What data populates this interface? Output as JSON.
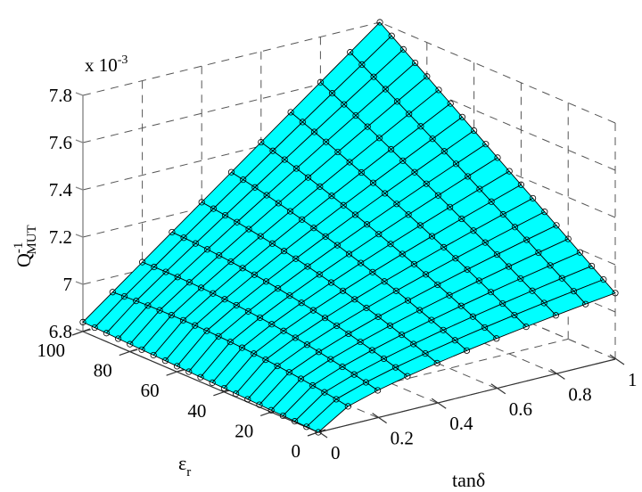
{
  "chart_data": {
    "type": "surface3d",
    "title": "",
    "xlabel": "tanδ",
    "ylabel": "ε",
    "ylabel_subscript": "r",
    "zlabel": "Q",
    "zlabel_superscript": "-1",
    "zlabel_subscript": "MUT",
    "z_multiplier": "x 10",
    "z_multiplier_exp": "-3",
    "x_ticks": [
      "0",
      "0.2",
      "0.4",
      "0.6",
      "0.8",
      "1"
    ],
    "y_ticks": [
      "0",
      "20",
      "40",
      "60",
      "80",
      "100"
    ],
    "z_ticks": [
      "6.8",
      "7",
      "7.2",
      "7.4",
      "7.6",
      "7.8"
    ],
    "xlim": [
      0,
      1
    ],
    "ylim": [
      0,
      100
    ],
    "zlim": [
      6.8,
      7.8
    ],
    "surface_color": "#00FFFF",
    "mesh": {
      "tan_delta_values": [
        0,
        0.1,
        0.2,
        0.3,
        0.4,
        0.5,
        0.6,
        0.7,
        0.8,
        0.9,
        1.0
      ],
      "epsilon_r_values": [
        0,
        5,
        10,
        15,
        20,
        25,
        30,
        35,
        40,
        45,
        50,
        55,
        60,
        65,
        70,
        75,
        80,
        85,
        90,
        95,
        100
      ]
    },
    "corner_values_e-3": {
      "er0_tan0": 6.8,
      "er100_tan0": 6.84,
      "er0_tan1": 7.08,
      "er100_tan1": 7.8
    },
    "grid": true
  }
}
